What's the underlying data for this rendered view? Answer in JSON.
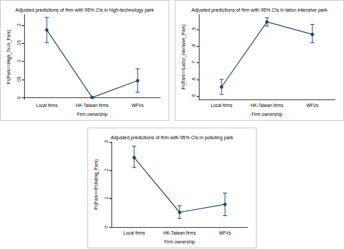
{
  "chart_data": [
    {
      "type": "line",
      "title": "Adjusted predictions of firm with 95% CIs in high-technology park",
      "x_label": "Firm ownership",
      "y_label": "Pr(Park==High_Tech_Park)",
      "categories": [
        "Local firms",
        "HK-Taiwan firms",
        "WFVs"
      ],
      "values": [
        0.187,
        0.0005,
        0.047
      ],
      "ci_lower": [
        0.152,
        -0.0005,
        0.015
      ],
      "ci_upper": [
        0.222,
        0.0015,
        0.08
      ],
      "color": "#1a476f",
      "marker": "circle",
      "ylim": [
        -0.005,
        0.23
      ],
      "yticks": [
        0,
        {
          "value": 0.05,
          "label": ".05"
        },
        {
          "value": 0.1,
          "label": ".1"
        },
        {
          "value": 0.15,
          "label": ".15"
        },
        {
          "value": 0.2,
          "label": ".2"
        }
      ],
      "grid": false
    },
    {
      "type": "line",
      "title": "Adjusted predictions of firm with 95% CIs in labor-intensive park",
      "x_label": "Firm ownership",
      "y_label": "Pr(Park==Labor_Intensive_Park)",
      "categories": [
        "Local firms",
        "HK-Taiwan firms",
        "WFVs"
      ],
      "values": [
        0.555,
        0.945,
        0.87
      ],
      "ci_lower": [
        0.51,
        0.92,
        0.82
      ],
      "ci_upper": [
        0.6,
        0.97,
        0.93
      ],
      "color": "#1a476f",
      "marker": "circle",
      "ylim": [
        0.48,
        0.99
      ],
      "yticks": [
        {
          "value": 0.5,
          "label": ".5"
        },
        {
          "value": 0.6,
          "label": ".6"
        },
        {
          "value": 0.7,
          "label": ".7"
        },
        {
          "value": 0.8,
          "label": ".8"
        },
        {
          "value": 0.9,
          "label": ".9"
        }
      ],
      "grid": false
    },
    {
      "type": "line",
      "title": "Adjusted predictions of firm with 95% CIs in polluting park",
      "x_label": "Firm ownership",
      "y_label": "Pr(Park==Polluting_Park)",
      "categories": [
        "Local firms",
        "HK-Taiwan firms",
        "WFVs"
      ],
      "values": [
        0.245,
        0.052,
        0.08
      ],
      "ci_lower": [
        0.21,
        0.03,
        0.04
      ],
      "ci_upper": [
        0.285,
        0.075,
        0.12
      ],
      "color": "#1a476f",
      "marker": "circle",
      "ylim": [
        0,
        0.3
      ],
      "yticks": [
        0,
        {
          "value": 0.1,
          "label": ".1"
        },
        {
          "value": 0.2,
          "label": ".2"
        },
        {
          "value": 0.3,
          "label": ".3"
        }
      ],
      "grid": false
    }
  ]
}
